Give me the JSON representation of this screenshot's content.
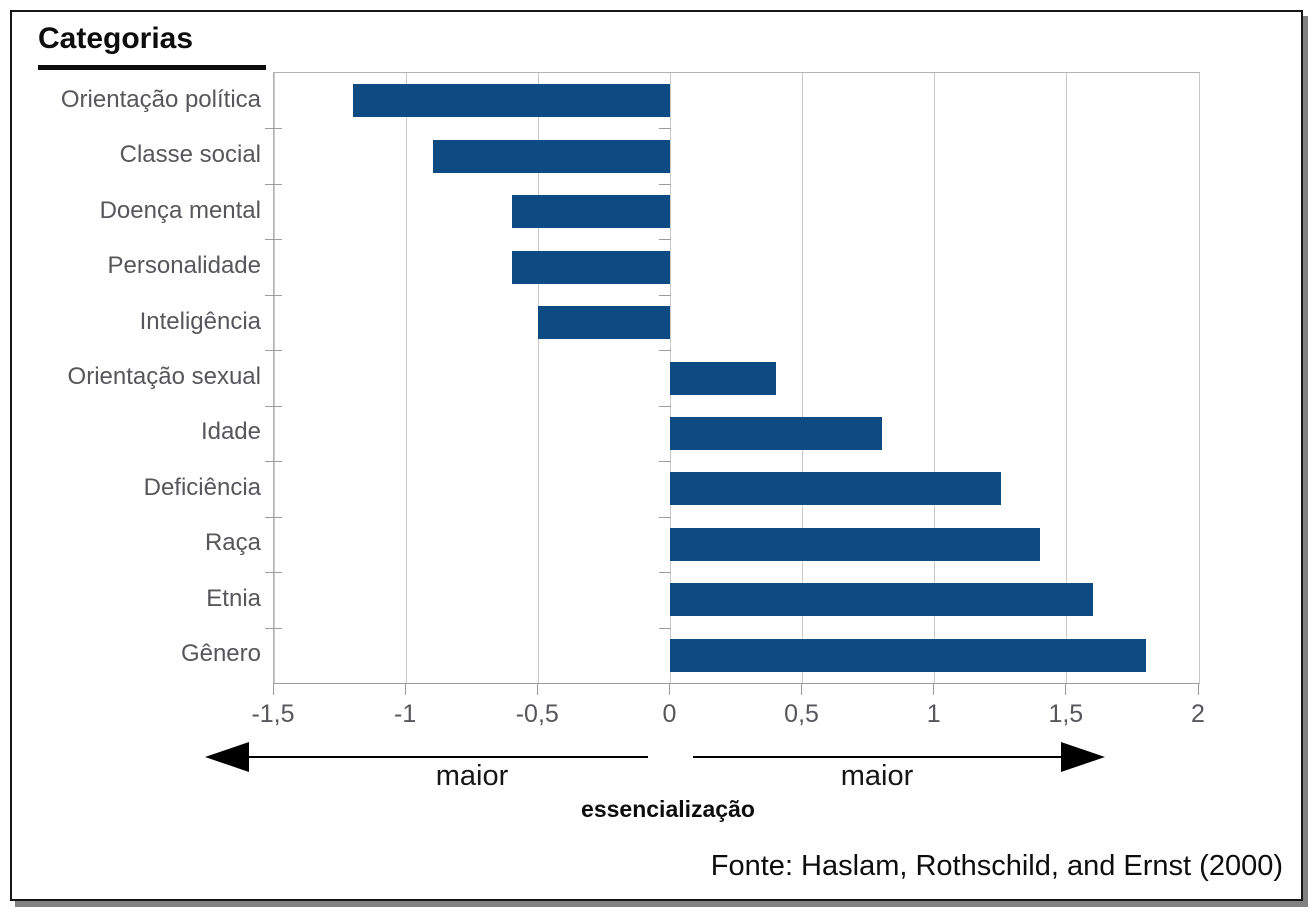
{
  "header": {
    "title": "Categorias"
  },
  "chart_data": {
    "type": "bar",
    "orientation": "horizontal",
    "title": "Categorias",
    "categories": [
      "Orientação política",
      "Classe social",
      "Doença mental",
      "Personalidade",
      "Inteligência",
      "Orientação sexual",
      "Idade",
      "Deficiência",
      "Raça",
      "Etnia",
      "Gênero"
    ],
    "values": [
      -1.2,
      -0.9,
      -0.6,
      -0.6,
      -0.5,
      0.4,
      0.8,
      1.25,
      1.4,
      1.6,
      1.8
    ],
    "xlim": [
      -1.5,
      2
    ],
    "x_ticks": [
      {
        "value": -1.5,
        "label": "-1,5"
      },
      {
        "value": -1,
        "label": "-1"
      },
      {
        "value": -0.5,
        "label": "-0,5"
      },
      {
        "value": 0,
        "label": "0"
      },
      {
        "value": 0.5,
        "label": "0,5"
      },
      {
        "value": 1,
        "label": "1"
      },
      {
        "value": 1.5,
        "label": "1,5"
      },
      {
        "value": 2,
        "label": "2"
      }
    ],
    "grid": true,
    "legend": "none",
    "bar_color": "#0e4b82"
  },
  "annotations": {
    "maior_left": "maior",
    "maior_right": "maior",
    "axis_note": "essencialização",
    "source": "Fonte: Haslam, Rothschild, and Ernst (2000)"
  }
}
